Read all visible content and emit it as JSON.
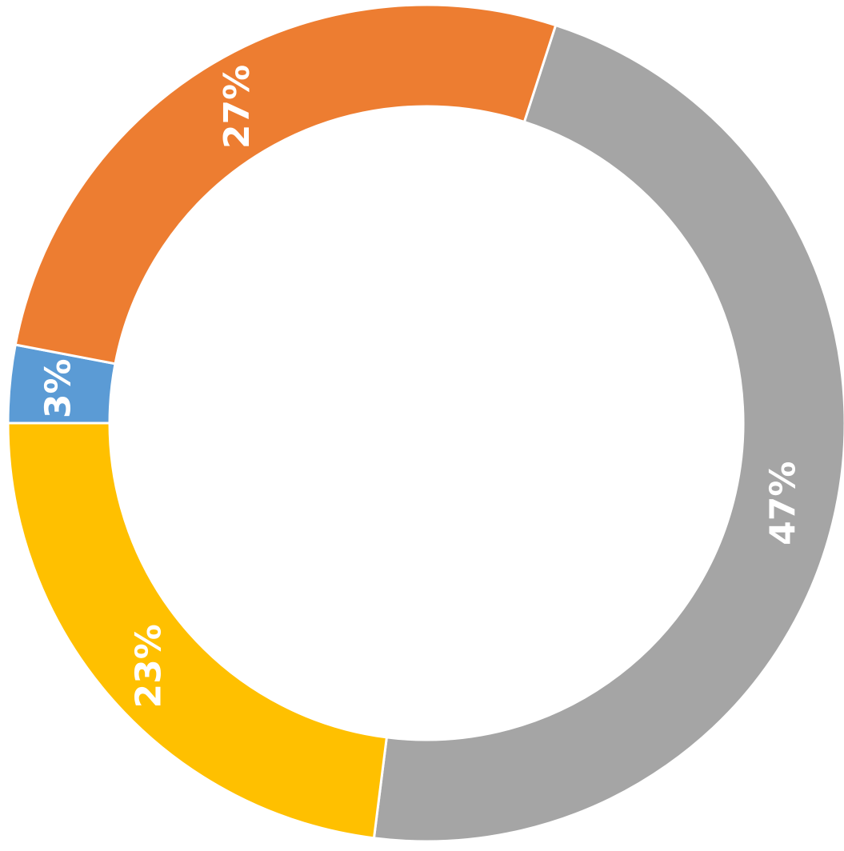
{
  "chart_data": {
    "type": "donut",
    "values": [
      47,
      23,
      3,
      27
    ],
    "value_labels": [
      "47%",
      "23%",
      "3%",
      "27%"
    ],
    "colors": [
      "#a5a5a5",
      "#ffc000",
      "#5b9bd5",
      "#ed7d31"
    ]
  }
}
